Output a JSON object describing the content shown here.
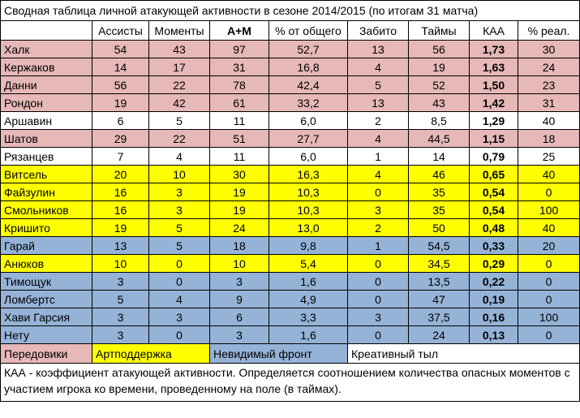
{
  "title": "Сводная таблица личной атакующей активности в сезоне 2014/2015 (по итогам 31 матча)",
  "table": {
    "header": [
      "",
      "Ассисты",
      "Моменты",
      "А+М",
      "% от общего",
      "Забито",
      "Таймы",
      "КАА",
      "% реал."
    ],
    "rows": [
      {
        "color": "#e6b8b7",
        "cells": [
          "Халк",
          "54",
          "43",
          "97",
          "52,7",
          "13",
          "56",
          "1,73",
          "30"
        ]
      },
      {
        "color": "#e6b8b7",
        "cells": [
          "Кержаков",
          "14",
          "17",
          "31",
          "16,8",
          "4",
          "19",
          "1,63",
          "24"
        ]
      },
      {
        "color": "#e6b8b7",
        "cells": [
          "Данни",
          "56",
          "22",
          "78",
          "42,4",
          "5",
          "52",
          "1,50",
          "23"
        ]
      },
      {
        "color": "#e6b8b7",
        "cells": [
          "Рондон",
          "19",
          "42",
          "61",
          "33,2",
          "13",
          "43",
          "1,42",
          "31"
        ]
      },
      {
        "color": "#ffffff",
        "cells": [
          "Аршавин",
          "6",
          "5",
          "11",
          "6,0",
          "2",
          "8,5",
          "1,29",
          "40"
        ]
      },
      {
        "color": "#e6b8b7",
        "cells": [
          "Шатов",
          "29",
          "22",
          "51",
          "27,7",
          "4",
          "44,5",
          "1,15",
          "18"
        ]
      },
      {
        "color": "#ffffff",
        "cells": [
          "Рязанцев",
          "7",
          "4",
          "11",
          "6,0",
          "1",
          "14",
          "0,79",
          "25"
        ]
      },
      {
        "color": "#ffff00",
        "cells": [
          "Витсель",
          "20",
          "10",
          "30",
          "16,3",
          "4",
          "46",
          "0,65",
          "40"
        ]
      },
      {
        "color": "#ffff00",
        "cells": [
          "Файзулин",
          "16",
          "3",
          "19",
          "10,3",
          "0",
          "35",
          "0,54",
          "0"
        ]
      },
      {
        "color": "#ffff00",
        "cells": [
          "Смольников",
          "16",
          "3",
          "19",
          "10,3",
          "3",
          "35",
          "0,54",
          "100"
        ]
      },
      {
        "color": "#ffff00",
        "cells": [
          "Кришито",
          "19",
          "5",
          "24",
          "13,0",
          "2",
          "50",
          "0,48",
          "40"
        ]
      },
      {
        "color": "#95b3d7",
        "cells": [
          "Гарай",
          "13",
          "5",
          "18",
          "9,8",
          "1",
          "54,5",
          "0,33",
          "20"
        ]
      },
      {
        "color": "#ffff00",
        "cells": [
          "Анюков",
          "10",
          "0",
          "10",
          "5,4",
          "0",
          "34,5",
          "0,29",
          "0"
        ]
      },
      {
        "color": "#95b3d7",
        "cells": [
          "Тимощук",
          "3",
          "0",
          "3",
          "1,6",
          "0",
          "13,5",
          "0,22",
          "0"
        ]
      },
      {
        "color": "#95b3d7",
        "cells": [
          "Ломбертс",
          "5",
          "4",
          "9",
          "4,9",
          "0",
          "47",
          "0,19",
          "0"
        ]
      },
      {
        "color": "#95b3d7",
        "cells": [
          "Хави Гарсия",
          "3",
          "3",
          "6",
          "3,3",
          "3",
          "37,5",
          "0,16",
          "100"
        ]
      },
      {
        "color": "#95b3d7",
        "cells": [
          "Нету",
          "3",
          "0",
          "3",
          "1,6",
          "0",
          "24",
          "0,13",
          "0"
        ]
      }
    ]
  },
  "legend": [
    {
      "label": "Передовики",
      "color": "#e6b8b7"
    },
    {
      "label": "Артподдержка",
      "color": "#ffff00"
    },
    {
      "label": "Невидимый фронт",
      "color": "#95b3d7"
    },
    {
      "label": "Креативный тыл",
      "color": "#ffffff"
    }
  ],
  "footnote": "КАА - коэффициент атакующей активности. Определяется соотношением количества опасных моментов с участием игрока ко времени, проведенному на поле (в таймах)."
}
